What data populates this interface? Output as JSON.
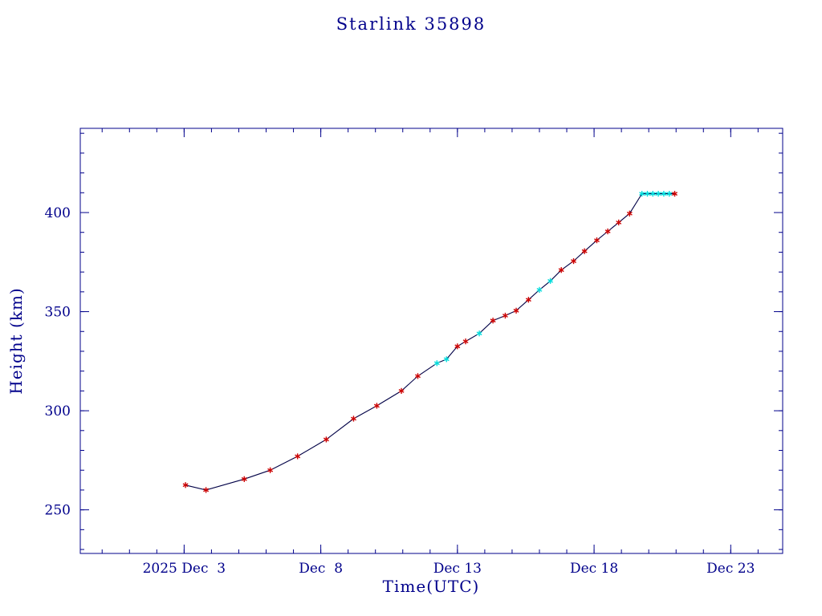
{
  "page": {
    "background": "#ffffff"
  },
  "chart_data": {
    "type": "line",
    "title": "Starlink 35898",
    "xlabel": "Time(UTC)",
    "ylabel": "Height (km)",
    "x_unit": "day of December 2025",
    "xlim": [
      -0.8,
      24.9
    ],
    "ylim": [
      228,
      442.5
    ],
    "grid": false,
    "legend": "none",
    "x_ticks": [
      {
        "value": 3,
        "label": "2025 Dec  3"
      },
      {
        "value": 8,
        "label": "Dec  8"
      },
      {
        "value": 13,
        "label": "Dec 13"
      },
      {
        "value": 18,
        "label": "Dec 18"
      },
      {
        "value": 23,
        "label": "Dec 23"
      }
    ],
    "x_minor_step": 1,
    "y_ticks": [
      {
        "value": 250,
        "label": "250"
      },
      {
        "value": 300,
        "label": "300"
      },
      {
        "value": 350,
        "label": "350"
      },
      {
        "value": 400,
        "label": "400"
      }
    ],
    "y_minor_step": 10,
    "colors": {
      "frame": "#00008b",
      "text": "#00008b",
      "line": "#000046",
      "marker_red": "#cc0000",
      "marker_cyan": "#00dcdc"
    },
    "series": [
      {
        "name": "height",
        "marker": "asterisk",
        "points": [
          {
            "x": 3.05,
            "y": 262.5,
            "m": "red"
          },
          {
            "x": 3.8,
            "y": 260.0,
            "m": "red"
          },
          {
            "x": 5.2,
            "y": 265.5,
            "m": "red"
          },
          {
            "x": 6.15,
            "y": 270.0,
            "m": "red"
          },
          {
            "x": 7.15,
            "y": 277.0,
            "m": "red"
          },
          {
            "x": 8.2,
            "y": 285.5,
            "m": "red"
          },
          {
            "x": 9.2,
            "y": 296.0,
            "m": "red"
          },
          {
            "x": 10.05,
            "y": 302.5,
            "m": "red"
          },
          {
            "x": 10.95,
            "y": 310.0,
            "m": "red"
          },
          {
            "x": 11.55,
            "y": 317.5,
            "m": "red"
          },
          {
            "x": 12.25,
            "y": 324.0,
            "m": "cyan"
          },
          {
            "x": 12.6,
            "y": 326.0,
            "m": "cyan"
          },
          {
            "x": 13.0,
            "y": 332.5,
            "m": "red"
          },
          {
            "x": 13.3,
            "y": 335.0,
            "m": "red"
          },
          {
            "x": 13.8,
            "y": 339.0,
            "m": "cyan"
          },
          {
            "x": 14.3,
            "y": 345.5,
            "m": "red"
          },
          {
            "x": 14.75,
            "y": 348.0,
            "m": "red"
          },
          {
            "x": 15.15,
            "y": 350.5,
            "m": "red"
          },
          {
            "x": 15.6,
            "y": 356.0,
            "m": "red"
          },
          {
            "x": 16.0,
            "y": 361.0,
            "m": "cyan"
          },
          {
            "x": 16.4,
            "y": 365.5,
            "m": "cyan"
          },
          {
            "x": 16.8,
            "y": 371.0,
            "m": "red"
          },
          {
            "x": 17.25,
            "y": 375.5,
            "m": "red"
          },
          {
            "x": 17.65,
            "y": 380.5,
            "m": "red"
          },
          {
            "x": 18.1,
            "y": 386.0,
            "m": "red"
          },
          {
            "x": 18.5,
            "y": 390.5,
            "m": "red"
          },
          {
            "x": 18.9,
            "y": 395.0,
            "m": "red"
          },
          {
            "x": 19.3,
            "y": 399.5,
            "m": "red"
          },
          {
            "x": 19.75,
            "y": 409.5,
            "m": "cyan"
          },
          {
            "x": 19.95,
            "y": 409.5,
            "m": "cyan"
          },
          {
            "x": 20.15,
            "y": 409.5,
            "m": "cyan"
          },
          {
            "x": 20.35,
            "y": 409.5,
            "m": "cyan"
          },
          {
            "x": 20.55,
            "y": 409.5,
            "m": "cyan"
          },
          {
            "x": 20.75,
            "y": 409.5,
            "m": "cyan"
          },
          {
            "x": 20.95,
            "y": 409.5,
            "m": "red"
          }
        ]
      }
    ]
  }
}
